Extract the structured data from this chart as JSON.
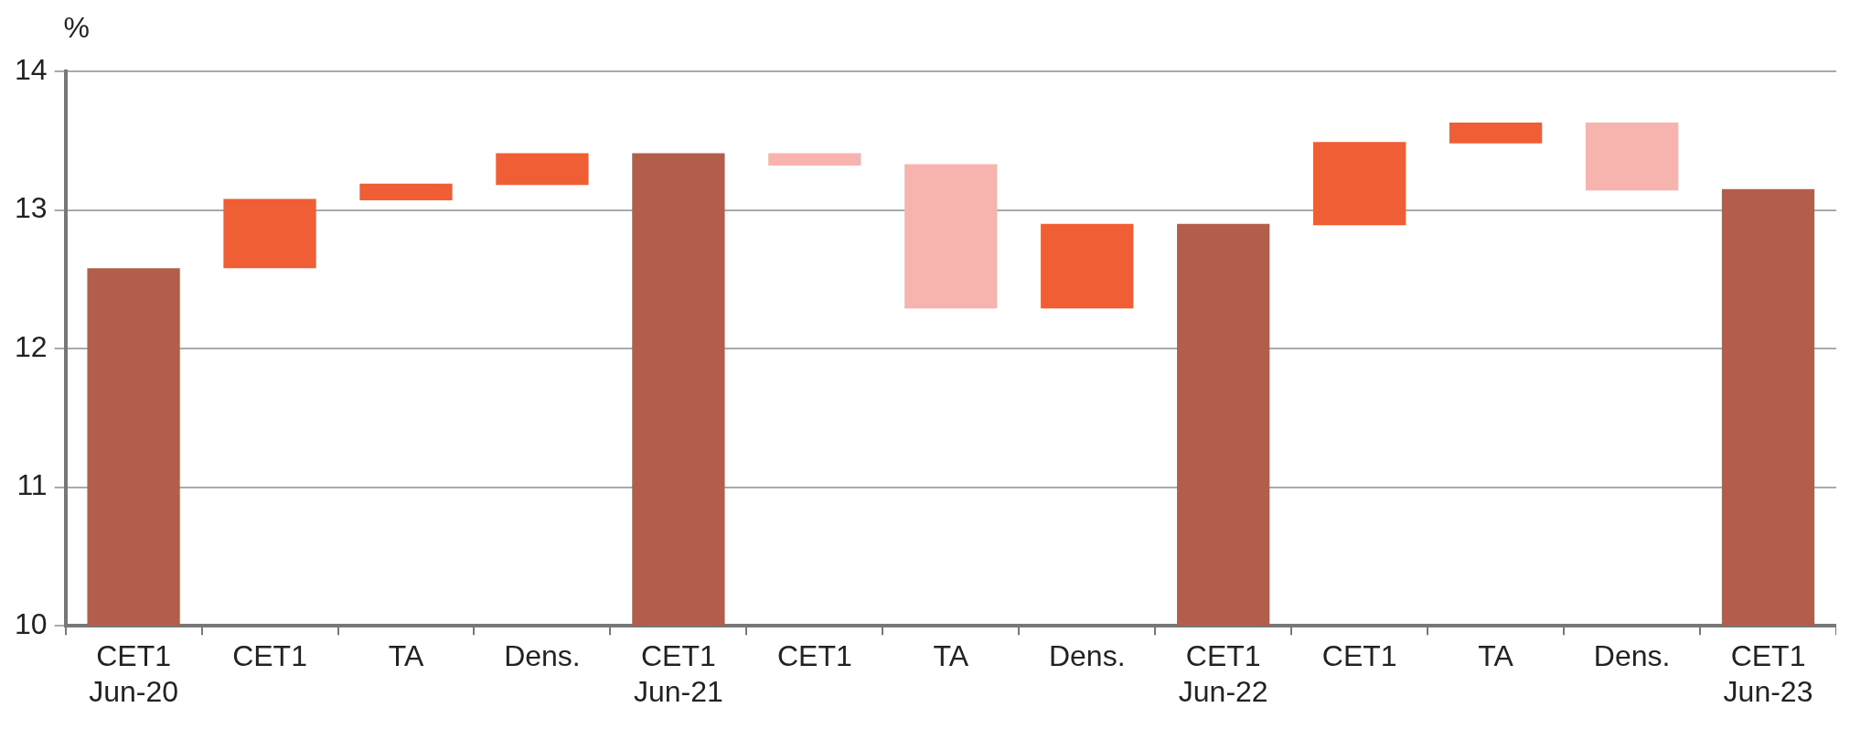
{
  "chart_data": {
    "type": "bar",
    "ylabel": "%",
    "categories": [
      "CET1\nJun-20",
      "CET1",
      "TA",
      "Dens.",
      "CET1\nJun-21",
      "CET1",
      "TA",
      "Dens.",
      "CET1\nJun-22",
      "CET1",
      "TA",
      "Dens.",
      "CET1\nJun-23"
    ],
    "base": [
      10,
      12.58,
      13.07,
      13.18,
      10,
      13.41,
      13.33,
      12.29,
      10,
      12.89,
      13.48,
      13.63,
      10
    ],
    "values": [
      2.58,
      0.5,
      0.12,
      0.23,
      3.41,
      -0.09,
      -1.04,
      0.61,
      2.9,
      0.6,
      0.15,
      -0.49,
      3.15
    ],
    "colors": [
      "#b35e4b",
      "#f05e35",
      "#f05e35",
      "#f05e35",
      "#b35e4b",
      "#f7b3ae",
      "#f7b3ae",
      "#f05e35",
      "#b35e4b",
      "#f05e35",
      "#f05e35",
      "#f7b3ae",
      "#b35e4b"
    ],
    "ylim": [
      10,
      14
    ],
    "yticks": [
      10,
      11,
      12,
      13,
      14
    ],
    "grid": "y"
  }
}
